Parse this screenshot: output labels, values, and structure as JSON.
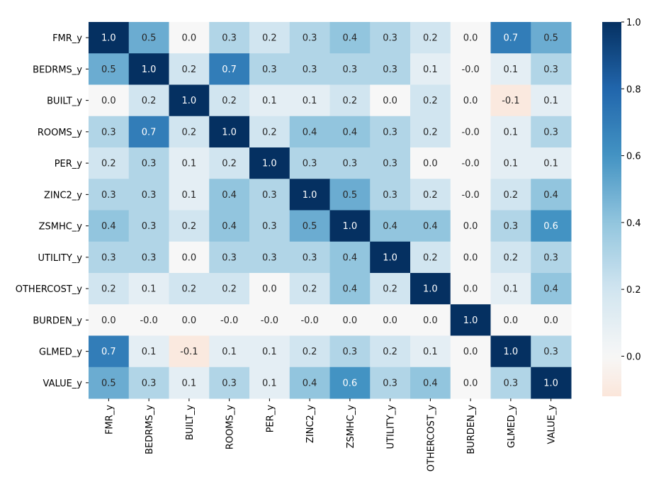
{
  "chart_data": {
    "type": "heatmap",
    "title": "",
    "xlabel": "",
    "ylabel": "",
    "rows": [
      "FMR_y",
      "BEDRMS_y",
      "BUILT_y",
      "ROOMS_y",
      "PER_y",
      "ZINC2_y",
      "ZSMHC_y",
      "UTILITY_y",
      "OTHERCOST_y",
      "BURDEN_y",
      "GLMED_y",
      "VALUE_y"
    ],
    "columns": [
      "FMR_y",
      "BEDRMS_y",
      "BUILT_y",
      "ROOMS_y",
      "PER_y",
      "ZINC2_y",
      "ZSMHC_y",
      "UTILITY_y",
      "OTHERCOST_y",
      "BURDEN_y",
      "GLMED_y",
      "VALUE_y"
    ],
    "values": [
      [
        1.0,
        0.5,
        0.0,
        0.3,
        0.2,
        0.3,
        0.4,
        0.3,
        0.2,
        0.0,
        0.7,
        0.5
      ],
      [
        0.5,
        1.0,
        0.2,
        0.7,
        0.3,
        0.3,
        0.3,
        0.3,
        0.1,
        -0.0,
        0.1,
        0.3
      ],
      [
        0.0,
        0.2,
        1.0,
        0.2,
        0.1,
        0.1,
        0.2,
        0.0,
        0.2,
        0.0,
        -0.1,
        0.1
      ],
      [
        0.3,
        0.7,
        0.2,
        1.0,
        0.2,
        0.4,
        0.4,
        0.3,
        0.2,
        -0.0,
        0.1,
        0.3
      ],
      [
        0.2,
        0.3,
        0.1,
        0.2,
        1.0,
        0.3,
        0.3,
        0.3,
        0.0,
        -0.0,
        0.1,
        0.1
      ],
      [
        0.3,
        0.3,
        0.1,
        0.4,
        0.3,
        1.0,
        0.5,
        0.3,
        0.2,
        -0.0,
        0.2,
        0.4
      ],
      [
        0.4,
        0.3,
        0.2,
        0.4,
        0.3,
        0.5,
        1.0,
        0.4,
        0.4,
        0.0,
        0.3,
        0.6
      ],
      [
        0.3,
        0.3,
        0.0,
        0.3,
        0.3,
        0.3,
        0.4,
        1.0,
        0.2,
        0.0,
        0.2,
        0.3
      ],
      [
        0.2,
        0.1,
        0.2,
        0.2,
        0.0,
        0.2,
        0.4,
        0.2,
        1.0,
        0.0,
        0.1,
        0.4
      ],
      [
        0.0,
        -0.0,
        0.0,
        -0.0,
        -0.0,
        -0.0,
        0.0,
        0.0,
        0.0,
        1.0,
        0.0,
        0.0
      ],
      [
        0.7,
        0.1,
        -0.1,
        0.1,
        0.1,
        0.2,
        0.3,
        0.2,
        0.1,
        0.0,
        1.0,
        0.3
      ],
      [
        0.5,
        0.3,
        0.1,
        0.3,
        0.1,
        0.4,
        0.6,
        0.3,
        0.4,
        0.0,
        0.3,
        1.0
      ]
    ],
    "colormap": "RdBu (centered at 0)",
    "vmin": -0.12,
    "vmax": 1.0,
    "colorbar_ticks": [
      "0.0",
      "0.2",
      "0.4",
      "0.6",
      "0.8",
      "1.0"
    ],
    "colorbar_tick_values": [
      0.0,
      0.2,
      0.4,
      0.6,
      0.8,
      1.0
    ],
    "annotate": true,
    "annotation_format": "0.1f"
  }
}
